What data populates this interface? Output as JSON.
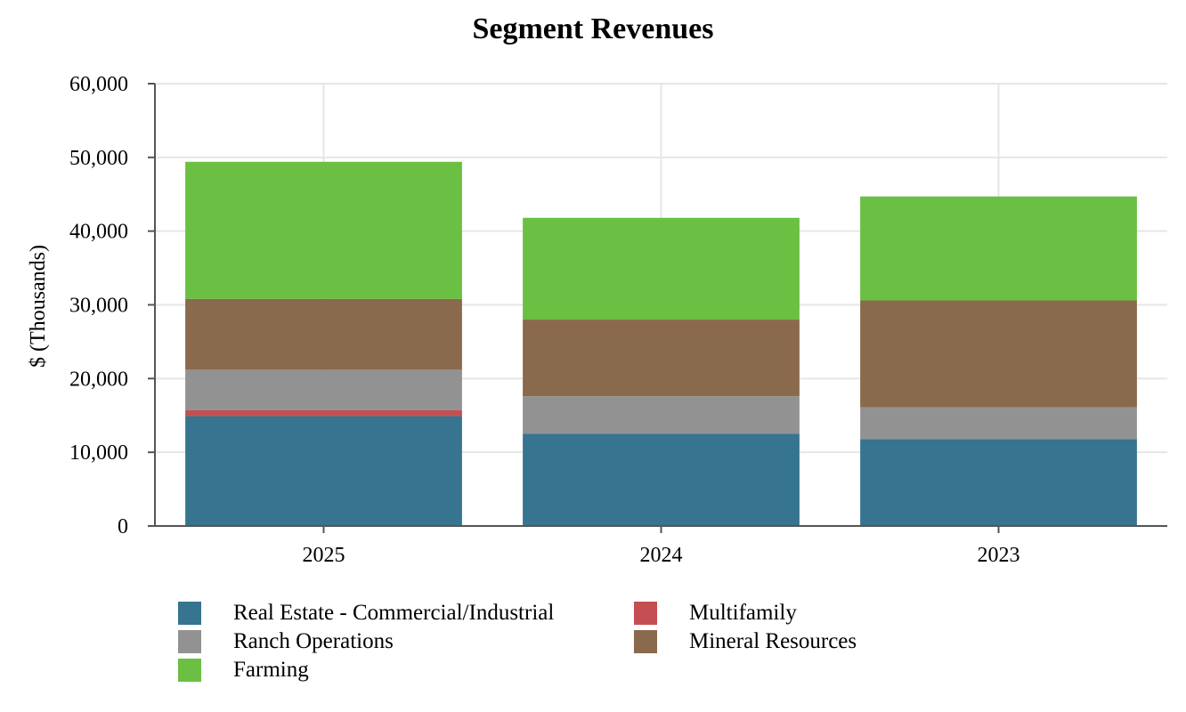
{
  "chart_data": {
    "type": "bar",
    "stacked": true,
    "title": "Segment Revenues",
    "xlabel": "",
    "ylabel": "$ (Thousands)",
    "categories": [
      "2025",
      "2024",
      "2023"
    ],
    "ylim": [
      0,
      60000
    ],
    "yticks": [
      0,
      10000,
      20000,
      30000,
      40000,
      50000,
      60000
    ],
    "ytick_labels": [
      "0",
      "10,000",
      "20,000",
      "30,000",
      "40,000",
      "50,000",
      "60,000"
    ],
    "grid": true,
    "legend_position": "bottom",
    "series": [
      {
        "name": "Real Estate - Commercial/Industrial",
        "color": "#367490",
        "values": [
          14900,
          12500,
          11800
        ]
      },
      {
        "name": "Multifamily",
        "color": "#c44e52",
        "values": [
          800,
          0,
          0
        ]
      },
      {
        "name": "Ranch Operations",
        "color": "#929292",
        "values": [
          5500,
          5100,
          4300
        ]
      },
      {
        "name": "Mineral Resources",
        "color": "#8a6a4c",
        "values": [
          9600,
          10400,
          14500
        ]
      },
      {
        "name": "Farming",
        "color": "#6bbf42",
        "values": [
          18600,
          13800,
          14100
        ]
      }
    ]
  }
}
